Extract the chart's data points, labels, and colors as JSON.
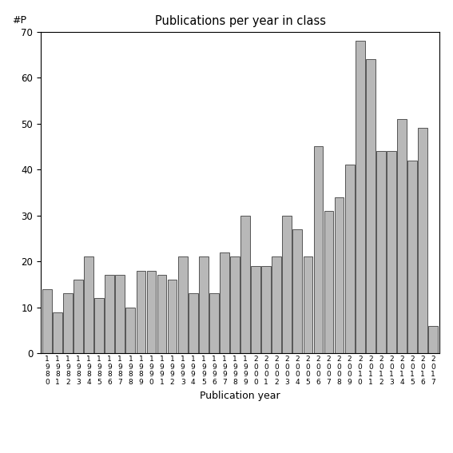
{
  "title": "Publications per year in class",
  "xlabel": "Publication year",
  "ylabel": "#P",
  "years": [
    1980,
    1981,
    1982,
    1983,
    1984,
    1985,
    1986,
    1987,
    1988,
    1989,
    1990,
    1991,
    1992,
    1993,
    1994,
    1995,
    1996,
    1997,
    1998,
    1999,
    2000,
    2001,
    2002,
    2003,
    2004,
    2005,
    2006,
    2007,
    2008,
    2009,
    2010,
    2011,
    2012,
    2013,
    2014,
    2015,
    2016,
    2017
  ],
  "values": [
    14,
    9,
    13,
    16,
    21,
    12,
    17,
    17,
    10,
    18,
    18,
    17,
    16,
    21,
    13,
    21,
    13,
    22,
    21,
    30,
    19,
    19,
    21,
    30,
    27,
    21,
    45,
    31,
    34,
    41,
    68,
    64,
    44,
    44,
    51,
    42,
    49,
    6
  ],
  "bar_color": "#b8b8b8",
  "bar_edge_color": "#555555",
  "ylim": [
    0,
    70
  ],
  "yticks": [
    0,
    10,
    20,
    30,
    40,
    50,
    60,
    70
  ],
  "bg_color": "#ffffff",
  "figsize": [
    5.67,
    5.67
  ],
  "dpi": 100
}
